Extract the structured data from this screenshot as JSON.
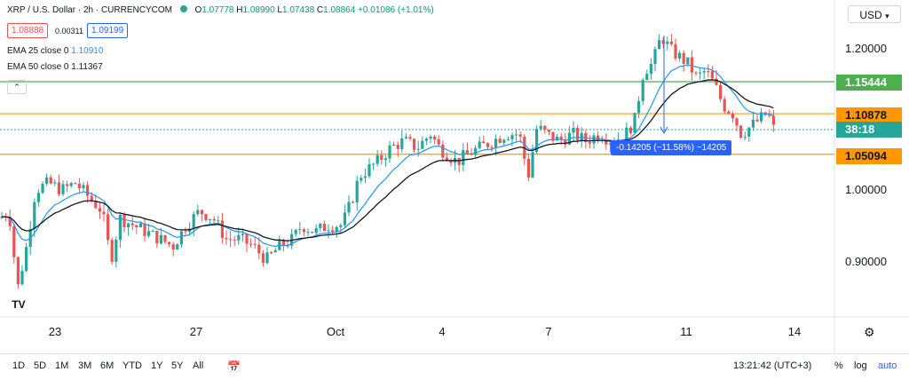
{
  "header": {
    "symbol": "XRP / U.S. Dollar · 2h · CURRENCYCOM",
    "ohlc_o_label": "O",
    "ohlc_o": "1.07778",
    "ohlc_h_label": "H",
    "ohlc_h": "1.08990",
    "ohlc_l_label": "L",
    "ohlc_l": "1.07438",
    "ohlc_c_label": "C",
    "ohlc_c": "1.08864",
    "change": "+0.01086 (+1.01%)",
    "bid": "1.08888",
    "spread": "0.00311",
    "ask": "1.09199",
    "ema25_label": "EMA 25 close 0",
    "ema25_value": "1.10910",
    "ema50_label": "EMA 50 close 0",
    "ema50_value": "1.11367",
    "currency": "USD",
    "logo": "TV"
  },
  "price_tags": {
    "green_level": "1.15444",
    "orange_upper": "1.10878",
    "countdown": "38:18",
    "orange_lower": "1.05094"
  },
  "measure_label": "-0.14205 (−11.58%) −14205",
  "bottom_bar": {
    "ranges": [
      "1D",
      "5D",
      "1M",
      "3M",
      "6M",
      "YTD",
      "1Y",
      "5Y",
      "All"
    ],
    "time": "13:21:42 (UTC+3)",
    "percent": "%",
    "log": "log",
    "auto": "auto"
  },
  "colors": {
    "up": "#26a69a",
    "down": "#ef5350",
    "ema25": "#2196f3",
    "ema50": "#131722",
    "green_line": "#4caf50",
    "orange_line": "#ff9800",
    "accent": "#2962ff"
  },
  "chart_data": {
    "type": "candlestick",
    "title": "XRP / U.S. Dollar · 2h · CURRENCYCOM",
    "y_ticks": [
      "1.20000",
      "1.00000",
      "0.90000"
    ],
    "ylim": [
      0.81,
      1.245
    ],
    "x_ticks": [
      "23",
      "27",
      "Oct",
      "4",
      "7",
      "11",
      "14"
    ],
    "horizontal_levels": [
      {
        "value": 1.15444,
        "color": "#4caf50"
      },
      {
        "value": 1.10878,
        "color": "#ff9800"
      },
      {
        "value": 1.05094,
        "color": "#ff9800"
      }
    ],
    "path_points": [
      [
        0,
        0.96
      ],
      [
        10,
        0.97
      ],
      [
        20,
        0.86
      ],
      [
        30,
        0.92
      ],
      [
        40,
        1.0
      ],
      [
        55,
        1.01
      ],
      [
        70,
        1.0
      ],
      [
        85,
        1.01
      ],
      [
        100,
        0.99
      ],
      [
        115,
        0.97
      ],
      [
        125,
        0.9
      ],
      [
        135,
        0.96
      ],
      [
        150,
        0.95
      ],
      [
        165,
        0.94
      ],
      [
        180,
        0.93
      ],
      [
        195,
        0.92
      ],
      [
        210,
        0.95
      ],
      [
        225,
        0.97
      ],
      [
        240,
        0.96
      ],
      [
        255,
        0.93
      ],
      [
        270,
        0.93
      ],
      [
        285,
        0.92
      ],
      [
        300,
        0.9
      ],
      [
        315,
        0.92
      ],
      [
        330,
        0.93
      ],
      [
        340,
        0.95
      ],
      [
        355,
        0.94
      ],
      [
        370,
        0.95
      ],
      [
        385,
        0.95
      ],
      [
        395,
        0.98
      ],
      [
        405,
        1.02
      ],
      [
        415,
        1.03
      ],
      [
        425,
        1.04
      ],
      [
        440,
        1.06
      ],
      [
        455,
        1.07
      ],
      [
        470,
        1.06
      ],
      [
        485,
        1.08
      ],
      [
        495,
        1.06
      ],
      [
        505,
        1.05
      ],
      [
        515,
        1.04
      ],
      [
        525,
        1.05
      ],
      [
        540,
        1.06
      ],
      [
        555,
        1.07
      ],
      [
        570,
        1.08
      ],
      [
        585,
        1.08
      ],
      [
        595,
        1.02
      ],
      [
        605,
        1.09
      ],
      [
        615,
        1.08
      ],
      [
        630,
        1.07
      ],
      [
        645,
        1.08
      ],
      [
        660,
        1.07
      ],
      [
        675,
        1.08
      ],
      [
        690,
        1.07
      ],
      [
        705,
        1.08
      ],
      [
        715,
        1.1
      ],
      [
        725,
        1.17
      ],
      [
        735,
        1.18
      ],
      [
        745,
        1.22
      ],
      [
        755,
        1.2
      ],
      [
        765,
        1.19
      ],
      [
        775,
        1.18
      ],
      [
        785,
        1.16
      ],
      [
        795,
        1.17
      ],
      [
        805,
        1.15
      ],
      [
        815,
        1.12
      ],
      [
        825,
        1.11
      ],
      [
        835,
        1.08
      ],
      [
        845,
        1.09
      ],
      [
        855,
        1.1
      ],
      [
        865,
        1.11
      ],
      [
        870,
        1.09
      ],
      [
        875,
        1.08
      ]
    ]
  }
}
